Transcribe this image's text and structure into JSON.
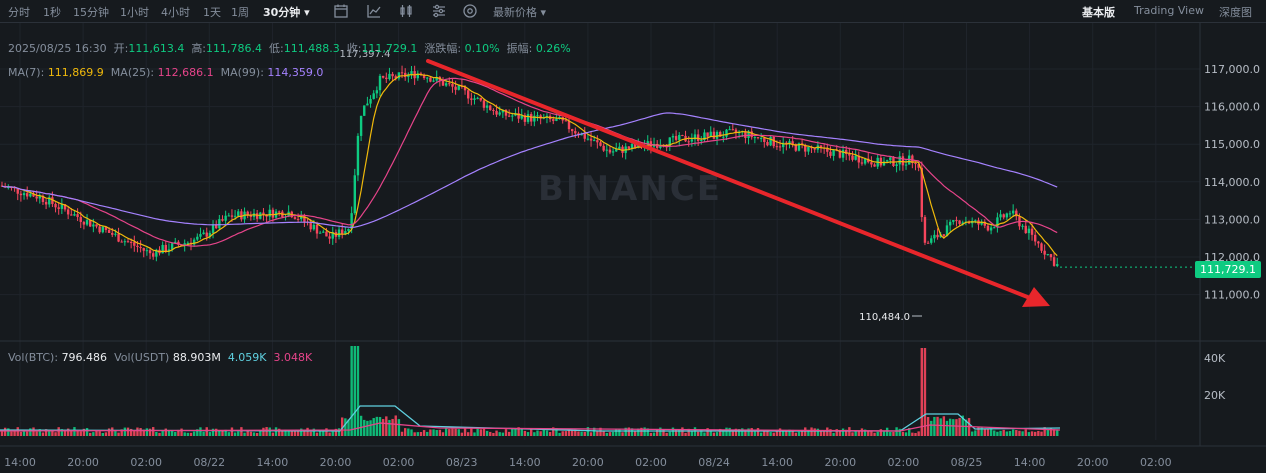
{
  "toolbar": {
    "intervals": [
      "分时",
      "1秒",
      "15分钟",
      "1小时",
      "4小时",
      "1天",
      "1周"
    ],
    "selected_interval": "30分钟",
    "price_type": "最新价格",
    "views": [
      "基本版",
      "Trading View",
      "深度图"
    ],
    "active_view": "基本版"
  },
  "ohlc": {
    "date": "2025/08/25 16:30",
    "open_label": "开:",
    "open": "111,613.4",
    "high_label": "高:",
    "high": "111,786.4",
    "low_label": "低:",
    "low": "111,488.3",
    "close_label": "收:",
    "close": "111,729.1",
    "change_label": "涨跌幅:",
    "change": "0.10%",
    "amplitude_label": "振幅:",
    "amplitude": "0.26%"
  },
  "ma": {
    "ma7_label": "MA(7):",
    "ma7": "111,869.9",
    "ma25_label": "MA(25):",
    "ma25": "112,686.1",
    "ma99_label": "MA(99):",
    "ma99": "114,359.0"
  },
  "volume": {
    "btc_label": "Vol(BTC):",
    "btc": "796.486",
    "usdt_label": "Vol(USDT)",
    "usdt": "88.903M",
    "ma1": "4.059K",
    "ma2": "3.048K",
    "axis": [
      "40K",
      "20K"
    ]
  },
  "price_axis": [
    "117,000.0",
    "116,000.0",
    "115,000.0",
    "114,000.0",
    "113,000.0",
    "112,000.0",
    "111,000.0"
  ],
  "current_price": "111,729.1",
  "high_marker": "117,397.4",
  "low_marker": "110,484.0",
  "time_axis": [
    "14:00",
    "20:00",
    "02:00",
    "08/22",
    "14:00",
    "20:00",
    "02:00",
    "08/23",
    "14:00",
    "20:00",
    "02:00",
    "08/24",
    "14:00",
    "20:00",
    "02:00",
    "08/25",
    "14:00",
    "20:00",
    "02:00"
  ],
  "watermark": "BINANCE",
  "colors": {
    "up": "#0ecb81",
    "down": "#f6465d",
    "arrow": "#e8262b",
    "ma7": "#f0b90b",
    "ma25": "#e6448a",
    "ma99": "#a582ff"
  }
}
